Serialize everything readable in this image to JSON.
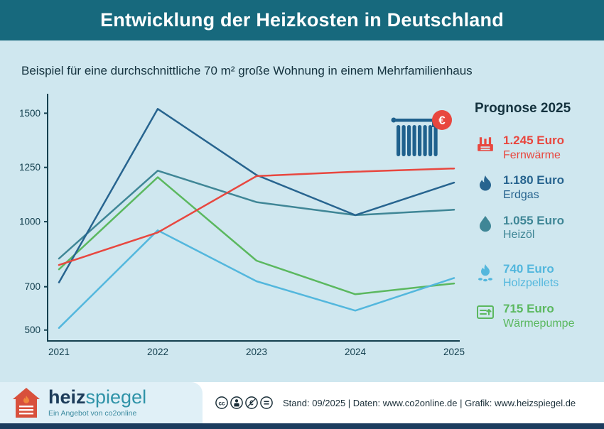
{
  "header": {
    "title": "Entwicklung der Heizkosten in Deutschland"
  },
  "subtitle": "Beispiel für eine durchschnittliche 70 m² große Wohnung in einem Mehrfamilienhaus",
  "chart_data": {
    "type": "line",
    "x": [
      "2021",
      "2022",
      "2023",
      "2024",
      "2025"
    ],
    "yticks": [
      500,
      700,
      1000,
      1250,
      1500
    ],
    "ylim": [
      450,
      1570
    ],
    "grid": false,
    "axis_color": "#14404f",
    "legend_position": "right",
    "euro_badge": "€",
    "series": [
      {
        "name": "Fernwärme",
        "color": "#e8473f",
        "values": [
          800,
          950,
          1210,
          1230,
          1245
        ]
      },
      {
        "name": "Erdgas",
        "color": "#27648f",
        "values": [
          720,
          1520,
          1215,
          1030,
          1180
        ]
      },
      {
        "name": "Heizöl",
        "color": "#3f8696",
        "values": [
          830,
          1235,
          1090,
          1030,
          1055
        ]
      },
      {
        "name": "Holzpellets",
        "color": "#53b7dd",
        "values": [
          510,
          960,
          725,
          590,
          740
        ]
      },
      {
        "name": "Wärmepumpe",
        "color": "#5bb85f",
        "values": [
          780,
          1205,
          820,
          665,
          715
        ]
      }
    ]
  },
  "legend": {
    "title": "Prognose 2025",
    "items": [
      {
        "value": "1.245 Euro",
        "label": "Fernwärme",
        "color": "#e8473f"
      },
      {
        "value": "1.180 Euro",
        "label": "Erdgas",
        "color": "#27648f"
      },
      {
        "value": "1.055 Euro",
        "label": "Heizöl",
        "color": "#3f8696"
      },
      {
        "value": "740 Euro",
        "label": "Holzpellets",
        "color": "#53b7dd"
      },
      {
        "value": "715 Euro",
        "label": "Wärmepumpe",
        "color": "#5bb85f"
      }
    ]
  },
  "footer": {
    "logo_heiz": "heiz",
    "logo_spiegel": "spiegel",
    "logo_sub": "Ein Angebot von co2online",
    "meta": "Stand: 09/2025  |  Daten: www.co2online.de  |  Grafik: www.heizspiegel.de"
  }
}
